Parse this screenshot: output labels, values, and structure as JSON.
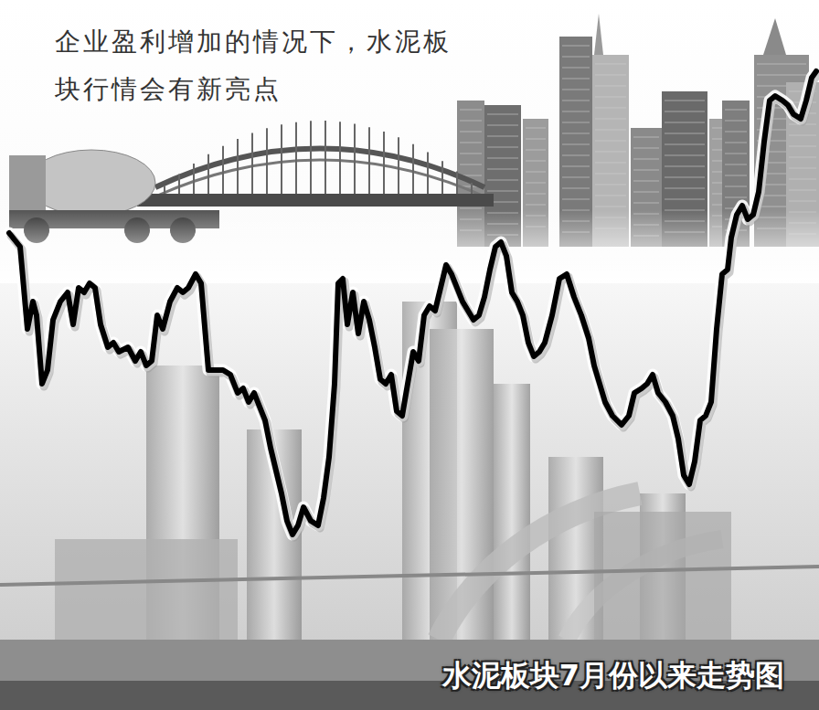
{
  "chart_data": {
    "type": "line",
    "title": "企业盈利增加的情况下，水泥板块行情会有新亮点",
    "subtitle": "水泥板块7月份以来走势图",
    "color": "#000000",
    "grid": false,
    "tick_labels": false,
    "xlim": [
      0,
      896
    ],
    "ylim": [
      0,
      110
    ],
    "x": [
      10,
      22,
      30,
      36,
      40,
      46,
      52,
      58,
      66,
      74,
      80,
      86,
      92,
      98,
      104,
      110,
      118,
      124,
      130,
      140,
      148,
      154,
      160,
      166,
      172,
      178,
      186,
      194,
      200,
      206,
      214,
      220,
      228,
      236,
      244,
      252,
      260,
      266,
      272,
      278,
      284,
      290,
      296,
      302,
      308,
      314,
      320,
      326,
      332,
      340,
      348,
      354,
      360,
      366,
      370,
      375,
      380,
      386,
      392,
      398,
      404,
      410,
      416,
      422,
      428,
      434,
      440,
      446,
      452,
      458,
      464,
      470,
      476,
      482,
      488,
      494,
      500,
      506,
      512,
      518,
      524,
      530,
      536,
      542,
      548,
      554,
      560,
      566,
      572,
      578,
      584,
      590,
      596,
      604,
      612,
      620,
      628,
      636,
      644,
      650,
      656,
      662,
      670,
      680,
      688,
      694,
      702,
      708,
      714,
      720,
      728,
      736,
      742,
      748,
      754,
      760,
      766,
      772,
      778,
      784,
      790,
      796,
      800,
      806,
      812,
      818,
      824,
      830,
      836,
      842,
      848,
      856,
      862,
      868,
      876,
      882,
      888,
      893
    ],
    "values": [
      69,
      66,
      48,
      54,
      51,
      36,
      39,
      50,
      54,
      56,
      49,
      57,
      56,
      58,
      57,
      49,
      44,
      45,
      43,
      44,
      41,
      43,
      40,
      41,
      51,
      48,
      54,
      57,
      56,
      57,
      60,
      58,
      39,
      39,
      39,
      38,
      34,
      35,
      32,
      34,
      31,
      28,
      22,
      17,
      12,
      6,
      3,
      5,
      9,
      6,
      5,
      11,
      20,
      36,
      58,
      59,
      49,
      56,
      47,
      54,
      50,
      44,
      37,
      36,
      38,
      30,
      29,
      36,
      43,
      41,
      51,
      53,
      52,
      57,
      62,
      60,
      57,
      54,
      52,
      50,
      51,
      55,
      61,
      66,
      67,
      64,
      56,
      54,
      51,
      45,
      42,
      43,
      45,
      51,
      59,
      60,
      55,
      51,
      46,
      40,
      36,
      32,
      29,
      27,
      29,
      34,
      35,
      36,
      38,
      34,
      32,
      29,
      24,
      16,
      14,
      19,
      28,
      29,
      32,
      48,
      60,
      61,
      68,
      73,
      75,
      72,
      73,
      78,
      89,
      98,
      99,
      98,
      97,
      95,
      94,
      98,
      103,
      104.4
    ]
  }
}
